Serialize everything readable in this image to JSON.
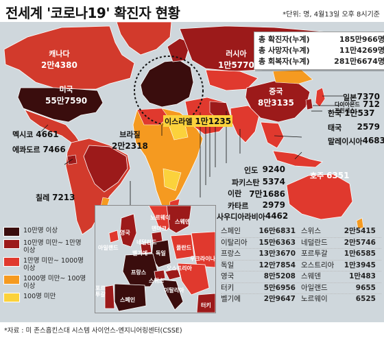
{
  "title": "전세계 '코로나19' 확진자 현황",
  "unit_note": "*단위: 명, 4월13일 오후 8시기준",
  "totals": [
    {
      "label": "총 확진자(누계)",
      "value": "185만966명"
    },
    {
      "label": "총 사망자(누계)",
      "value": "11만4269명"
    },
    {
      "label": "총 회복자(누계)",
      "value": "281만6674명"
    }
  ],
  "map_labels": {
    "canada": {
      "name": "캐나다",
      "value": "2만4380"
    },
    "usa": {
      "name": "미국",
      "value": "55만7590"
    },
    "russia": {
      "name": "러시아",
      "value": "1만5770"
    },
    "mexico": {
      "name": "멕시코",
      "value": "4661"
    },
    "ecuador": {
      "name": "에콰도르",
      "value": "7466"
    },
    "brazil": {
      "name": "브라질",
      "value": "2만2318"
    },
    "chile": {
      "name": "칠레",
      "value": "7213"
    },
    "israel": {
      "name": "이스라엘",
      "value": "1만1235"
    },
    "china": {
      "name": "중국",
      "value": "8만3135"
    },
    "japan": {
      "name": "일본",
      "value": "7370"
    },
    "diamond": {
      "name": "다이아몬드 프린세스",
      "value": "712"
    },
    "korea": {
      "name": "한국",
      "value": "1만537"
    },
    "thailand": {
      "name": "태국",
      "value": "2579"
    },
    "malaysia": {
      "name": "말레이시아",
      "value": "4683"
    },
    "india": {
      "name": "인도",
      "value": "9240"
    },
    "pakistan": {
      "name": "파키스탄",
      "value": "5374"
    },
    "iran": {
      "name": "이란",
      "value": "7만1686"
    },
    "qatar": {
      "name": "카타르",
      "value": "2979"
    },
    "saudi": {
      "name": "사우디아라비아",
      "value": "4462"
    },
    "australia": {
      "name": "호주",
      "value": "6351"
    }
  },
  "legend": [
    {
      "label": "10만명 이상",
      "color": "#3a0d0d"
    },
    {
      "label": "10만명 미만~ 1만명 이상",
      "color": "#9c1a1a"
    },
    {
      "label": "1만명 미만~ 1000명 이상",
      "color": "#e0392e"
    },
    {
      "label": "1000명 미만~ 100명 이상",
      "color": "#f59a20"
    },
    {
      "label": "100명 미만",
      "color": "#fbd23c"
    }
  ],
  "europe_labels": {
    "norway": "노르웨이",
    "sweden": "스웨덴",
    "uk": "영국",
    "denmark": "덴마크",
    "netherlands": "네덜란드",
    "ireland": "아일랜드",
    "belgium": "벨기에",
    "germany": "독일",
    "poland": "폴란드",
    "ukraine": "우크라이나",
    "france": "프랑스",
    "switzerland": "스위스",
    "italy": "이탈리아",
    "portugal": "포르투갈",
    "spain": "스페인",
    "austria": "오스트리아",
    "turkey": "터키"
  },
  "europe_table": [
    [
      {
        "name": "스페인",
        "value": "16만6831"
      },
      {
        "name": "스위스",
        "value": "2만5415"
      }
    ],
    [
      {
        "name": "이탈리아",
        "value": "15만6363"
      },
      {
        "name": "네덜란드",
        "value": "2만5746"
      }
    ],
    [
      {
        "name": "프랑스",
        "value": "13만3670"
      },
      {
        "name": "포르투갈",
        "value": "1만6585"
      }
    ],
    [
      {
        "name": "독일",
        "value": "12만7854"
      },
      {
        "name": "오스트리아",
        "value": "1만3945"
      }
    ],
    [
      {
        "name": "영국",
        "value": "8만5208"
      },
      {
        "name": "스웨덴",
        "value": "1만483"
      }
    ],
    [
      {
        "name": "터키",
        "value": "5만6956"
      },
      {
        "name": "아일랜드",
        "value": "9655"
      }
    ],
    [
      {
        "name": "벨기에",
        "value": "2만9647"
      },
      {
        "name": "노르웨이",
        "value": "6525"
      }
    ]
  ],
  "source": "*자료 : 미 존스홉킨스대 시스템 사이언스-엔지니어링센터(CSSE)"
}
